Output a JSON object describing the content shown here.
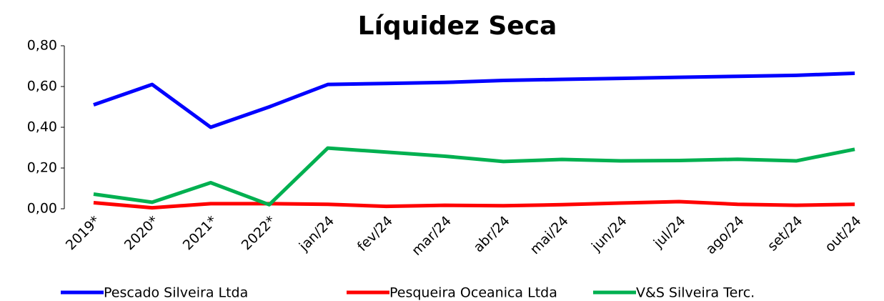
{
  "chart_data": {
    "type": "line",
    "title": "Líquidez Seca",
    "categories": [
      "2019*",
      "2020*",
      "2021*",
      "2022*",
      "jan/24",
      "fev/24",
      "mar/24",
      "abr/24",
      "mai/24",
      "jun/24",
      "jul/24",
      "ago/24",
      "set/24",
      "out/24"
    ],
    "series": [
      {
        "name": "Pescado Silveira Ltda",
        "color": "#0000ff",
        "values": [
          0.51,
          0.61,
          0.4,
          0.5,
          0.61,
          0.615,
          0.62,
          0.63,
          0.635,
          0.64,
          0.645,
          0.65,
          0.655,
          0.665
        ]
      },
      {
        "name": "Pesqueira Oceanica Ltda",
        "color": "#ff0000",
        "values": [
          0.03,
          0.005,
          0.025,
          0.025,
          0.022,
          0.012,
          0.017,
          0.015,
          0.02,
          0.028,
          0.035,
          0.022,
          0.017,
          0.022
        ]
      },
      {
        "name": "V&S Silveira Terc.",
        "color": "#00b050",
        "values": [
          0.072,
          0.032,
          0.128,
          0.02,
          0.298,
          0.278,
          0.258,
          0.232,
          0.242,
          0.235,
          0.237,
          0.243,
          0.235,
          0.292
        ]
      }
    ],
    "ylim": [
      0,
      0.8
    ],
    "yticks": [
      {
        "value": 0,
        "label": "0,00"
      },
      {
        "value": 0.2,
        "label": "0,20"
      },
      {
        "value": 0.4,
        "label": "0,40"
      },
      {
        "value": 0.6,
        "label": "0,60"
      },
      {
        "value": 0.8,
        "label": "0,80"
      }
    ],
    "legend": "bottom"
  }
}
